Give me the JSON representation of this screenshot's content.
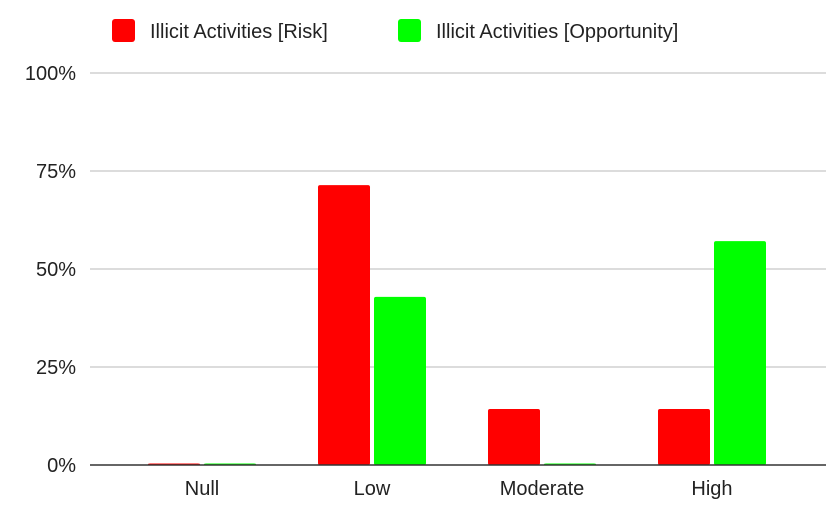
{
  "chart_data": {
    "type": "bar",
    "title": "",
    "xlabel": "",
    "ylabel": "",
    "categories": [
      "Null",
      "Low",
      "Moderate",
      "High"
    ],
    "ylim": [
      0,
      100
    ],
    "yticks": [
      "0%",
      "25%",
      "50%",
      "75%",
      "100%"
    ],
    "grid": true,
    "legend_position": "top",
    "series": [
      {
        "name": "Illicit Activities [Risk]",
        "color": "#ff0000",
        "values": [
          0,
          71.4,
          14.3,
          14.3
        ]
      },
      {
        "name": "Illicit Activities [Opportunity]",
        "color": "#00ff00",
        "values": [
          0,
          42.9,
          0,
          57.1
        ]
      }
    ]
  }
}
